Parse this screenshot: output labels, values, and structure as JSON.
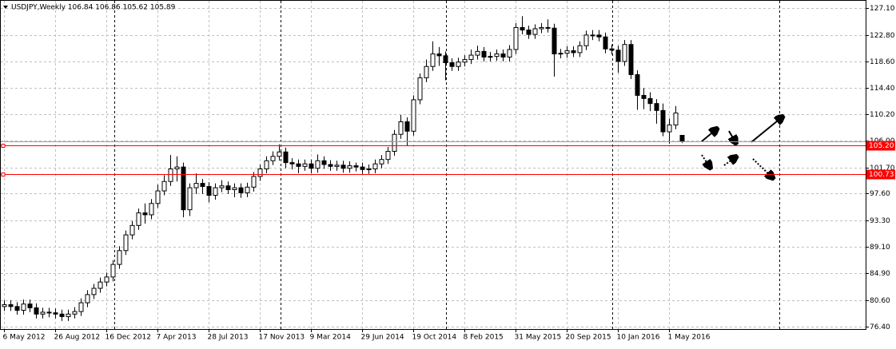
{
  "chart_data": {
    "type": "candlestick",
    "title": "USDJPY,Weekly  106.84 106.86 105.62 105.89",
    "categories": [
      "6 May 2012",
      null,
      null,
      null,
      null,
      null,
      null,
      null,
      "26 Aug 2012",
      null,
      null,
      null,
      null,
      null,
      null,
      null,
      "16 Dec 2012",
      null,
      null,
      null,
      null,
      null,
      null,
      null,
      "7 Apr 2013",
      null,
      null,
      null,
      null,
      null,
      null,
      null,
      "28 Jul 2013",
      null,
      null,
      null,
      null,
      null,
      null,
      null,
      "17 Nov 2013",
      null,
      null,
      null,
      null,
      null,
      null,
      null,
      "9 Mar 2014",
      null,
      null,
      null,
      null,
      null,
      null,
      null,
      "29 Jun 2014",
      null,
      null,
      null,
      null,
      null,
      null,
      null,
      "19 Oct 2014",
      null,
      null,
      null,
      null,
      null,
      null,
      null,
      "8 Feb 2015",
      null,
      null,
      null,
      null,
      null,
      null,
      null,
      "31 May 2015",
      null,
      null,
      null,
      null,
      null,
      null,
      null,
      "20 Sep 2015",
      null,
      null,
      null,
      null,
      null,
      null,
      null,
      "10 Jan 2016",
      null,
      null,
      null,
      null,
      null,
      null,
      null,
      "1 May 2016",
      null,
      null
    ],
    "open": [
      79.6,
      79.9,
      79.6,
      79.0,
      80.0,
      79.4,
      78.4,
      78.7,
      78.6,
      78.4,
      78.0,
      78.4,
      78.8,
      80.2,
      81.5,
      82.5,
      83.5,
      84.3,
      86.3,
      88.5,
      91.0,
      92.5,
      94.5,
      94.2,
      96.0,
      98.0,
      99.5,
      101.5,
      101.8,
      95.0,
      98.5,
      99.2,
      98.7,
      97.3,
      98.5,
      98.8,
      98.2,
      98.5,
      97.7,
      98.6,
      100.3,
      101.5,
      102.8,
      103.5,
      104.2,
      102.5,
      102.3,
      101.9,
      102.3,
      101.6,
      102.8,
      102.2,
      101.9,
      102.1,
      101.6,
      102.0,
      101.8,
      101.4,
      101.5,
      102.3,
      103.0,
      104.3,
      107.0,
      109.0,
      107.5,
      112.5,
      116.0,
      117.8,
      119.8,
      119.5,
      118.4,
      117.8,
      118.5,
      118.9,
      119.6,
      120.2,
      119.3,
      119.4,
      119.8,
      119.3,
      120.5,
      124.0,
      123.6,
      122.9,
      123.8,
      124.0,
      123.9,
      119.8,
      119.9,
      120.3,
      120.0,
      121.1,
      122.8,
      122.8,
      122.5,
      120.6,
      120.4,
      118.6,
      121.3,
      116.5,
      113.2,
      112.7,
      111.9,
      110.8,
      107.4,
      108.5,
      106.84
    ],
    "high": [
      80.6,
      80.6,
      80.3,
      80.7,
      80.7,
      80.1,
      79.4,
      79.4,
      79.3,
      79.1,
      79.1,
      79.5,
      80.9,
      82.2,
      83.2,
      84.2,
      85.0,
      87.0,
      89.2,
      91.7,
      93.2,
      95.2,
      96.0,
      96.7,
      99.0,
      100.5,
      103.7,
      103.5,
      102.5,
      99.2,
      100.8,
      99.9,
      99.4,
      99.2,
      99.7,
      99.5,
      99.2,
      99.2,
      99.3,
      101.0,
      102.2,
      103.5,
      104.3,
      105.4,
      104.9,
      103.2,
      103.0,
      103.0,
      103.0,
      103.8,
      103.5,
      102.9,
      102.8,
      102.8,
      102.7,
      102.5,
      102.5,
      102.2,
      103.0,
      103.7,
      105.0,
      107.7,
      110.1,
      109.7,
      113.2,
      116.7,
      118.9,
      121.8,
      120.9,
      120.2,
      119.1,
      119.2,
      119.6,
      120.5,
      121.1,
      120.9,
      120.1,
      120.5,
      120.5,
      121.2,
      124.7,
      125.8,
      124.3,
      124.5,
      124.7,
      125.3,
      124.6,
      120.6,
      121.0,
      121.0,
      121.8,
      123.5,
      123.6,
      123.6,
      123.2,
      121.3,
      121.1,
      122.0,
      122.0,
      117.2,
      114.4,
      113.7,
      112.6,
      111.9,
      109.5,
      111.5,
      106.86
    ],
    "low": [
      78.9,
      78.9,
      78.3,
      78.3,
      78.7,
      77.7,
      77.7,
      77.9,
      77.7,
      77.3,
      77.3,
      77.7,
      78.1,
      79.5,
      80.8,
      81.8,
      82.8,
      83.6,
      85.6,
      87.8,
      90.3,
      91.8,
      92.8,
      93.5,
      95.3,
      97.3,
      98.8,
      99.5,
      93.8,
      94.0,
      97.5,
      97.5,
      96.2,
      96.6,
      97.8,
      97.5,
      97.0,
      96.9,
      97.0,
      97.9,
      99.6,
      100.8,
      102.1,
      102.8,
      101.6,
      101.4,
      100.8,
      101.2,
      100.8,
      100.9,
      101.5,
      101.2,
      101.2,
      100.9,
      100.9,
      101.1,
      100.7,
      100.7,
      100.8,
      101.6,
      102.3,
      103.6,
      106.3,
      105.2,
      106.8,
      111.8,
      115.3,
      117.1,
      117.9,
      115.6,
      117.1,
      117.1,
      117.8,
      118.2,
      118.9,
      118.6,
      118.6,
      118.7,
      118.6,
      118.6,
      119.8,
      122.9,
      122.2,
      122.2,
      123.1,
      123.2,
      116.2,
      119.1,
      119.2,
      119.3,
      119.3,
      120.4,
      122.0,
      121.8,
      119.9,
      119.7,
      116.8,
      117.9,
      115.8,
      110.9,
      111.0,
      110.7,
      108.7,
      106.7,
      105.5,
      107.8,
      105.62
    ],
    "close": [
      79.9,
      79.6,
      79.0,
      80.0,
      79.4,
      78.4,
      78.7,
      78.6,
      78.4,
      78.0,
      78.4,
      78.8,
      80.2,
      81.5,
      82.5,
      83.5,
      84.3,
      86.3,
      88.5,
      91.0,
      92.5,
      94.5,
      94.2,
      96.0,
      98.0,
      99.5,
      101.5,
      101.8,
      95.0,
      98.5,
      99.2,
      98.7,
      97.3,
      98.5,
      98.8,
      98.2,
      98.5,
      97.7,
      98.6,
      100.3,
      101.5,
      102.8,
      103.5,
      104.2,
      102.5,
      102.3,
      101.9,
      102.3,
      101.6,
      102.8,
      102.2,
      101.9,
      102.1,
      101.6,
      102.0,
      101.8,
      101.4,
      101.5,
      102.3,
      103.0,
      104.3,
      107.0,
      109.0,
      107.5,
      112.5,
      116.0,
      117.8,
      119.8,
      119.5,
      118.4,
      117.8,
      118.5,
      118.9,
      119.6,
      120.2,
      119.3,
      119.4,
      119.8,
      119.3,
      120.5,
      124.0,
      123.6,
      122.9,
      123.8,
      124.0,
      123.9,
      119.8,
      119.9,
      120.3,
      120.0,
      121.1,
      122.8,
      122.8,
      122.5,
      120.6,
      120.4,
      118.6,
      121.3,
      116.5,
      113.2,
      112.7,
      111.9,
      110.8,
      107.4,
      108.5,
      110.4,
      105.89
    ],
    "ylim": [
      76.02,
      128.25
    ],
    "yticks": [
      {
        "value": 76.4,
        "label": "76.40"
      },
      {
        "value": 80.6,
        "label": "80.60"
      },
      {
        "value": 84.9,
        "label": "84.90"
      },
      {
        "value": 89.1,
        "label": "89.10"
      },
      {
        "value": 93.3,
        "label": "93.30"
      },
      {
        "value": 97.6,
        "label": "97.60"
      },
      {
        "value": 101.7,
        "label": "101.70"
      },
      {
        "value": 106.0,
        "label": "106.00"
      },
      {
        "value": 110.2,
        "label": "110.20"
      },
      {
        "value": 114.4,
        "label": "114.40"
      },
      {
        "value": 118.6,
        "label": "118.60"
      },
      {
        "value": 122.8,
        "label": "122.80"
      },
      {
        "value": 127.1,
        "label": "127.10"
      }
    ],
    "grid": true,
    "lines": [
      {
        "value": 105.89,
        "color": "#a0a0a0"
      },
      {
        "value": 105.2,
        "label": "105.20",
        "color": "#ff0000"
      },
      {
        "value": 100.73,
        "label": "100.73",
        "color": "#ff0000"
      }
    ]
  }
}
